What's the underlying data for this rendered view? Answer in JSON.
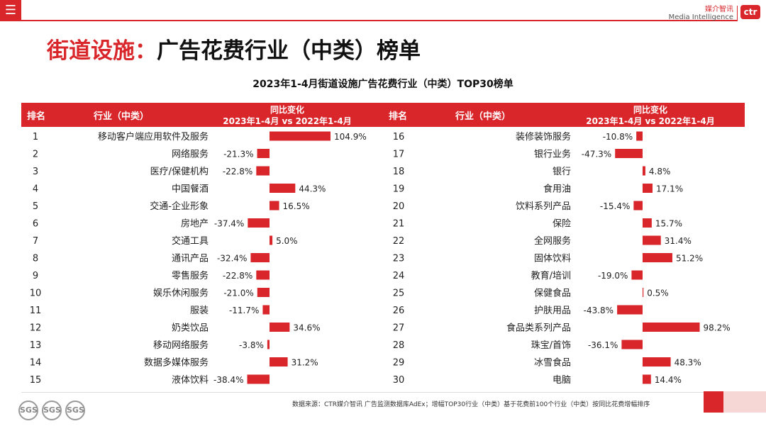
{
  "menu_icon": "menu-icon",
  "brand": {
    "zh": "媒介智讯",
    "en": "Media Intelligence",
    "logo": "ctr"
  },
  "page_title": {
    "accent": "街道设施：",
    "rest": "广告花费行业（中类）榜单"
  },
  "headers": {
    "rank": "排名",
    "industry": "行业（中类）",
    "change": "同比变化",
    "period": "2023年1-4月 vs 2022年1-4月"
  },
  "footnote": "数据来源：CTR媒介智讯 广告监测数据库AdEx；增幅TOP30行业（中类）基于花费前100个行业（中类）按同比花费增幅排序",
  "badge_label": "SGS",
  "colors": {
    "accent": "#d9262b",
    "bar": "#d9262b",
    "text": "#222222"
  },
  "chart_data": {
    "type": "bar",
    "title": "2023年1-4月街道设施广告花费行业（中类）TOP30榜单",
    "unit": "%",
    "left": [
      {
        "rank": 1,
        "name": "移动客户端应用软件及服务",
        "value": 104.9
      },
      {
        "rank": 2,
        "name": "网络服务",
        "value": -21.3
      },
      {
        "rank": 3,
        "name": "医疗/保健机构",
        "value": -22.8
      },
      {
        "rank": 4,
        "name": "中国餐酒",
        "value": 44.3
      },
      {
        "rank": 5,
        "name": "交通-企业形象",
        "value": 16.5
      },
      {
        "rank": 6,
        "name": "房地产",
        "value": -37.4
      },
      {
        "rank": 7,
        "name": "交通工具",
        "value": 5.0
      },
      {
        "rank": 8,
        "name": "通讯产品",
        "value": -32.4
      },
      {
        "rank": 9,
        "name": "零售服务",
        "value": -22.8
      },
      {
        "rank": 10,
        "name": "娱乐休闲服务",
        "value": -21.0
      },
      {
        "rank": 11,
        "name": "服装",
        "value": -11.7
      },
      {
        "rank": 12,
        "name": "奶类饮品",
        "value": 34.6
      },
      {
        "rank": 13,
        "name": "移动网络服务",
        "value": -3.8
      },
      {
        "rank": 14,
        "name": "数据多媒体服务",
        "value": 31.2
      },
      {
        "rank": 15,
        "name": "液体饮料",
        "value": -38.4
      }
    ],
    "right": [
      {
        "rank": 16,
        "name": "装修装饰服务",
        "value": -10.8
      },
      {
        "rank": 17,
        "name": "银行业务",
        "value": -47.3
      },
      {
        "rank": 18,
        "name": "银行",
        "value": 4.8
      },
      {
        "rank": 19,
        "name": "食用油",
        "value": 17.1
      },
      {
        "rank": 20,
        "name": "饮料系列产品",
        "value": -15.4
      },
      {
        "rank": 21,
        "name": "保险",
        "value": 15.7
      },
      {
        "rank": 22,
        "name": "全网服务",
        "value": 31.4
      },
      {
        "rank": 23,
        "name": "固体饮料",
        "value": 51.2
      },
      {
        "rank": 24,
        "name": "教育/培训",
        "value": -19.0
      },
      {
        "rank": 25,
        "name": "保健食品",
        "value": 0.5
      },
      {
        "rank": 26,
        "name": "护肤用品",
        "value": -43.8
      },
      {
        "rank": 27,
        "name": "食品类系列产品",
        "value": 98.2
      },
      {
        "rank": 28,
        "name": "珠宝/首饰",
        "value": -36.1
      },
      {
        "rank": 29,
        "name": "冰雪食品",
        "value": 48.3
      },
      {
        "rank": 30,
        "name": "电脑",
        "value": 14.4
      }
    ]
  }
}
